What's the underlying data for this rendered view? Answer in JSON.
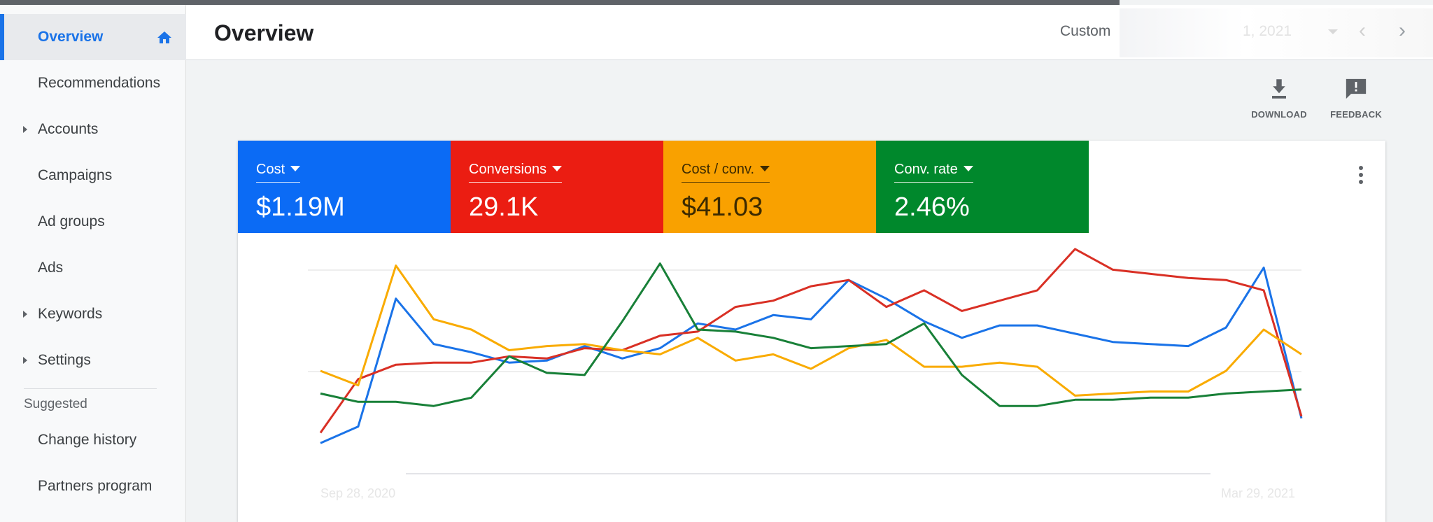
{
  "sidebar": {
    "items": [
      {
        "label": "Overview"
      },
      {
        "label": "Recommendations"
      },
      {
        "label": "Accounts"
      },
      {
        "label": "Campaigns"
      },
      {
        "label": "Ad groups"
      },
      {
        "label": "Ads"
      },
      {
        "label": "Keywords"
      },
      {
        "label": "Settings"
      }
    ],
    "suggested_heading": "Suggested",
    "suggested": [
      {
        "label": "Change history"
      },
      {
        "label": "Partners program"
      }
    ]
  },
  "header": {
    "title": "Overview",
    "date_preset": "Custom",
    "date_range": "1, 2021"
  },
  "tools": {
    "download_label": "DOWNLOAD",
    "feedback_label": "FEEDBACK"
  },
  "metrics": [
    {
      "label": "Cost",
      "value": "$1.19M",
      "color": "#0b6bf5"
    },
    {
      "label": "Conversions",
      "value": "29.1K",
      "color": "#eb1d12"
    },
    {
      "label": "Cost / conv.",
      "value": "$41.03",
      "color": "#f9a100"
    },
    {
      "label": "Conv. rate",
      "value": "2.46%",
      "color": "#00882c"
    }
  ],
  "chart_data": {
    "type": "line",
    "x_start_label": "Sep 28, 2020",
    "x_end_label": "Mar 29, 2021",
    "ylim": [
      0,
      100
    ],
    "grid": true,
    "series": [
      {
        "color": "#1a73e8",
        "values": [
          5,
          13,
          75,
          53,
          49,
          44,
          45,
          52,
          46,
          51,
          63,
          60,
          67,
          65,
          84,
          75,
          64,
          56,
          62,
          62,
          58,
          54,
          53,
          52,
          61,
          90,
          17
        ]
      },
      {
        "color": "#d93025",
        "values": [
          10,
          36,
          43,
          44,
          44,
          47,
          46,
          51,
          50,
          57,
          59,
          71,
          74,
          81,
          84,
          71,
          79,
          69,
          74,
          79,
          99,
          89,
          87,
          85,
          84,
          79,
          18
        ]
      },
      {
        "color": "#f9ab00",
        "values": [
          40,
          33,
          91,
          65,
          60,
          50,
          52,
          53,
          50,
          48,
          56,
          45,
          48,
          41,
          51,
          55,
          42,
          42,
          44,
          42,
          28,
          29,
          30,
          30,
          40,
          60,
          48
        ]
      },
      {
        "color": "#188038",
        "values": [
          29,
          25,
          25,
          23,
          27,
          47,
          39,
          38,
          64,
          92,
          60,
          59,
          56,
          51,
          52,
          53,
          63,
          38,
          23,
          23,
          26,
          26,
          27,
          27,
          29,
          30,
          31
        ]
      }
    ]
  }
}
